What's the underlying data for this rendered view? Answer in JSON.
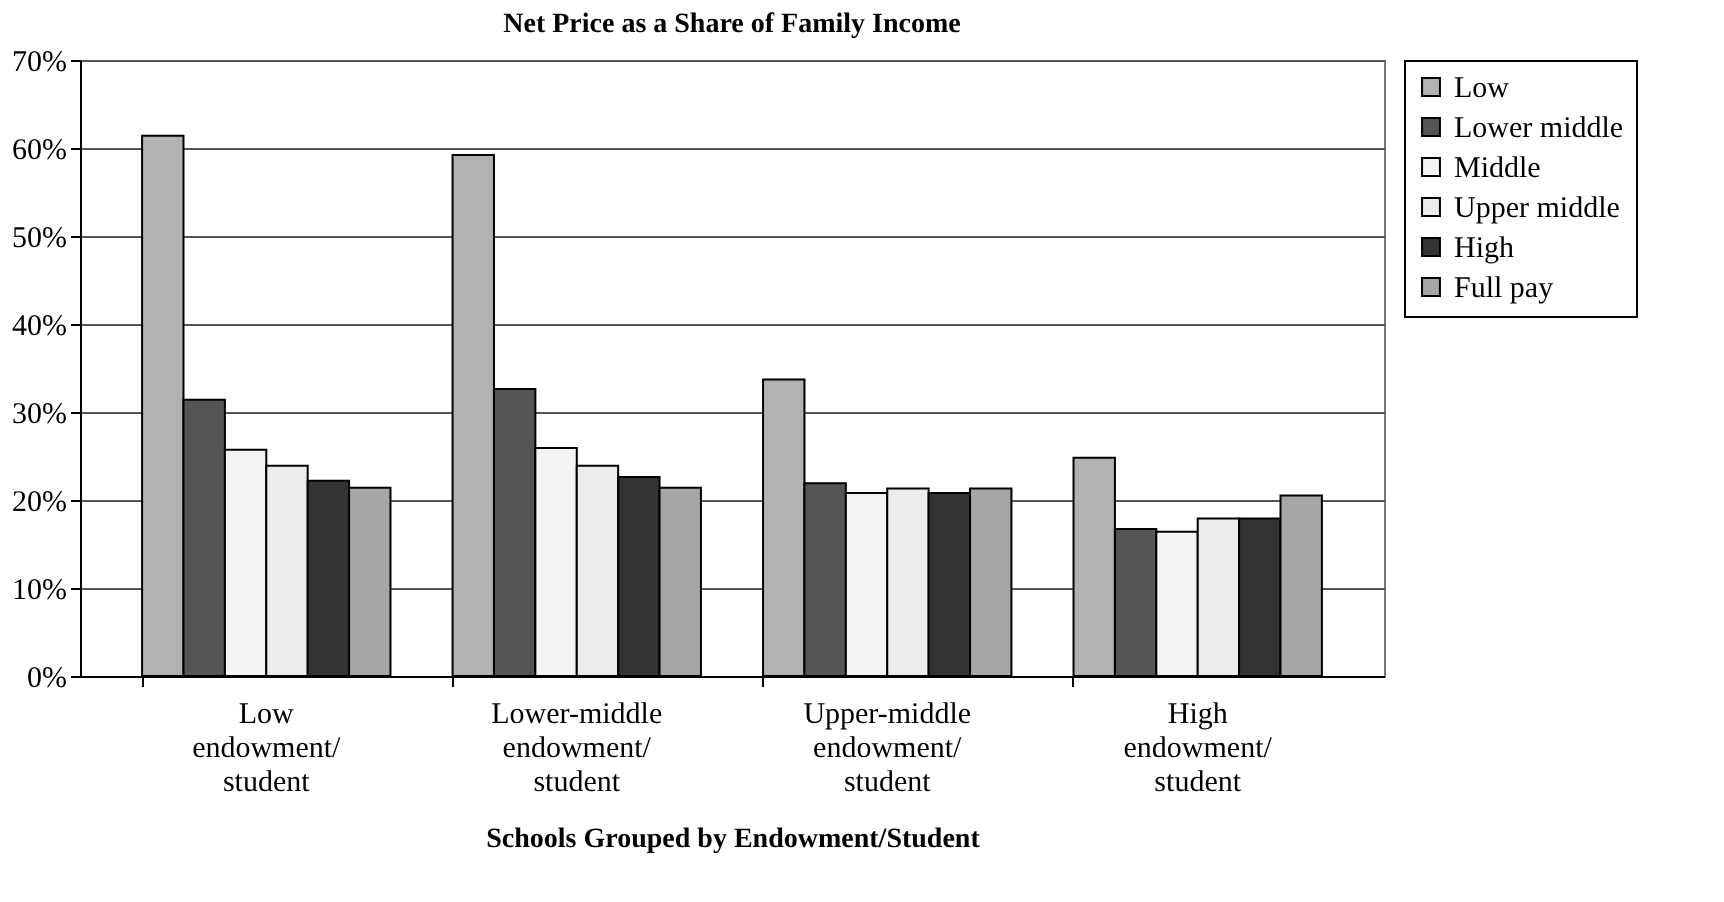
{
  "chart_data": {
    "type": "bar",
    "title": "Net Price as a Share of Family Income",
    "xlabel": "Schools Grouped by Endowment/Student",
    "categories": [
      "Low endowment/student",
      "Lower-middle endowment/student",
      "Upper-middle endowment/student",
      "High endowment/student"
    ],
    "series": [
      {
        "name": "Low",
        "color": "#b2b2b2",
        "values": [
          61.4,
          59.2,
          33.7,
          24.8
        ]
      },
      {
        "name": "Lower middle",
        "color": "#555555",
        "values": [
          31.4,
          32.6,
          21.9,
          16.7
        ]
      },
      {
        "name": "Middle",
        "color": "#f4f4f4",
        "values": [
          25.7,
          25.9,
          20.8,
          16.4
        ]
      },
      {
        "name": "Upper middle",
        "color": "#ececec",
        "values": [
          23.9,
          23.9,
          21.3,
          17.9
        ]
      },
      {
        "name": "High",
        "color": "#333333",
        "values": [
          22.2,
          22.6,
          20.8,
          17.9
        ]
      },
      {
        "name": "Full pay",
        "color": "#a6a6a6",
        "values": [
          21.4,
          21.4,
          21.3,
          20.5
        ]
      }
    ],
    "ylim": [
      0,
      70
    ],
    "yticks": [
      {
        "value": 0,
        "label": "0%"
      },
      {
        "value": 10,
        "label": "10%"
      },
      {
        "value": 20,
        "label": "20%"
      },
      {
        "value": 30,
        "label": "30%"
      },
      {
        "value": 40,
        "label": "40%"
      },
      {
        "value": 50,
        "label": "50%"
      },
      {
        "value": 60,
        "label": "60%"
      },
      {
        "value": 70,
        "label": "70%"
      }
    ],
    "grid": "y",
    "legend": "right"
  }
}
